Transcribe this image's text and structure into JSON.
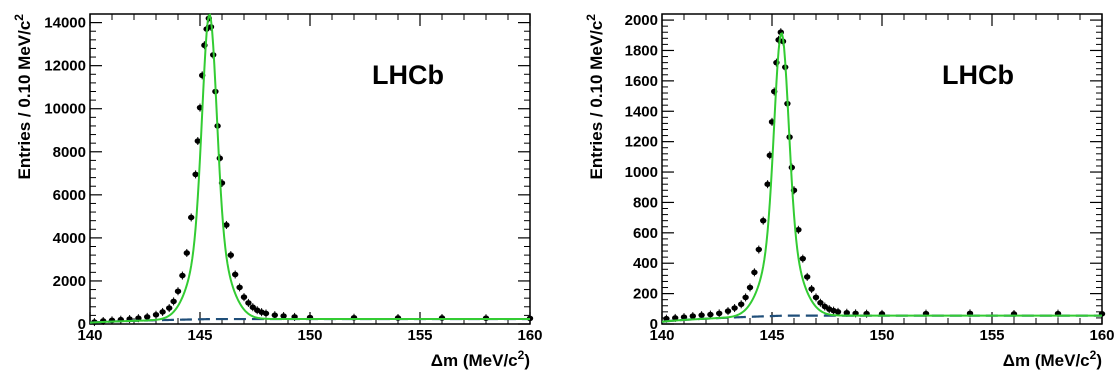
{
  "chart_data": [
    {
      "type": "scatter",
      "brand_label": "LHCb",
      "xlabel_prefix": "Δm (MeV/c",
      "xlabel_sup": "2",
      "xlabel_suffix": ")",
      "ylabel_prefix": "Entries / 0.10 MeV/c",
      "ylabel_sup": "2",
      "xlim": [
        140,
        160
      ],
      "ylim": [
        0,
        14400
      ],
      "xticks": [
        140,
        145,
        150,
        155,
        160
      ],
      "yticks": [
        0,
        2000,
        4000,
        6000,
        8000,
        10000,
        12000,
        14000
      ],
      "xtick_labels": [
        "140",
        "145",
        "150",
        "155",
        "160"
      ],
      "ytick_labels": [
        "0",
        "2000",
        "4000",
        "6000",
        "8000",
        "10000",
        "12000",
        "14000"
      ],
      "signal_peak": {
        "mean": 145.43,
        "amplitude": 14150,
        "sigma_core": 0.32,
        "sigma_tail": 0.75
      },
      "background": {
        "threshold": 139.57,
        "scale": 230
      },
      "data_points": {
        "x": [
          140.2,
          140.6,
          141.0,
          141.4,
          141.8,
          142.2,
          142.6,
          143.0,
          143.3,
          143.6,
          143.8,
          144.0,
          144.2,
          144.4,
          144.6,
          144.8,
          144.9,
          145.0,
          145.1,
          145.2,
          145.3,
          145.4,
          145.5,
          145.6,
          145.7,
          145.8,
          145.9,
          146.0,
          146.2,
          146.4,
          146.6,
          146.8,
          147.0,
          147.2,
          147.4,
          147.6,
          147.8,
          148.0,
          148.4,
          148.8,
          149.3,
          150,
          152,
          154,
          156,
          158,
          160
        ],
        "y": [
          90,
          140,
          170,
          200,
          230,
          270,
          330,
          430,
          560,
          740,
          1050,
          1520,
          2250,
          3300,
          4950,
          6950,
          8500,
          10050,
          11550,
          12950,
          13700,
          14200,
          13800,
          12500,
          10800,
          9200,
          7700,
          6550,
          4600,
          3200,
          2300,
          1700,
          1250,
          980,
          780,
          640,
          550,
          490,
          410,
          370,
          330,
          300,
          290,
          280,
          280,
          270,
          260
        ]
      },
      "series": [
        {
          "name": "",
          "color": "#33cc33",
          "style": "solid"
        },
        {
          "name": "",
          "color": "#1f4e79",
          "style": "dashed"
        }
      ]
    },
    {
      "type": "scatter",
      "brand_label": "LHCb",
      "xlabel_prefix": "Δm (MeV/c",
      "xlabel_sup": "2",
      "xlabel_suffix": ")",
      "ylabel_prefix": "Entries / 0.10 MeV/c",
      "ylabel_sup": "2",
      "xlim": [
        140,
        160
      ],
      "ylim": [
        0,
        2040
      ],
      "xticks": [
        140,
        145,
        150,
        155,
        160
      ],
      "yticks": [
        0,
        200,
        400,
        600,
        800,
        1000,
        1200,
        1400,
        1600,
        1800,
        2000
      ],
      "xtick_labels": [
        "140",
        "145",
        "150",
        "155",
        "160"
      ],
      "ytick_labels": [
        "0",
        "200",
        "400",
        "600",
        "800",
        "1000",
        "1200",
        "1400",
        "1600",
        "1800",
        "2000"
      ],
      "signal_peak": {
        "mean": 145.43,
        "amplitude": 1860,
        "sigma_core": 0.32,
        "sigma_tail": 0.75
      },
      "background": {
        "threshold": 139.57,
        "scale": 55
      },
      "data_points": {
        "x": [
          140.2,
          140.6,
          141.0,
          141.4,
          141.8,
          142.2,
          142.6,
          143.0,
          143.3,
          143.6,
          143.8,
          144.0,
          144.2,
          144.4,
          144.6,
          144.8,
          144.9,
          145.0,
          145.1,
          145.2,
          145.3,
          145.4,
          145.5,
          145.6,
          145.7,
          145.8,
          145.9,
          146.0,
          146.2,
          146.4,
          146.6,
          146.8,
          147.0,
          147.2,
          147.4,
          147.6,
          147.8,
          148.0,
          148.4,
          148.8,
          149.3,
          150,
          152,
          154,
          156,
          158,
          160
        ],
        "y": [
          35,
          40,
          45,
          52,
          58,
          62,
          70,
          85,
          105,
          130,
          175,
          240,
          340,
          490,
          680,
          920,
          1110,
          1330,
          1530,
          1720,
          1870,
          1920,
          1860,
          1690,
          1450,
          1230,
          1030,
          880,
          620,
          430,
          310,
          230,
          175,
          140,
          115,
          98,
          88,
          80,
          74,
          70,
          68,
          67,
          68,
          70,
          66,
          68,
          67
        ]
      },
      "series": [
        {
          "name": "",
          "color": "#33cc33",
          "style": "solid"
        },
        {
          "name": "",
          "color": "#1f4e79",
          "style": "dashed"
        }
      ]
    }
  ]
}
